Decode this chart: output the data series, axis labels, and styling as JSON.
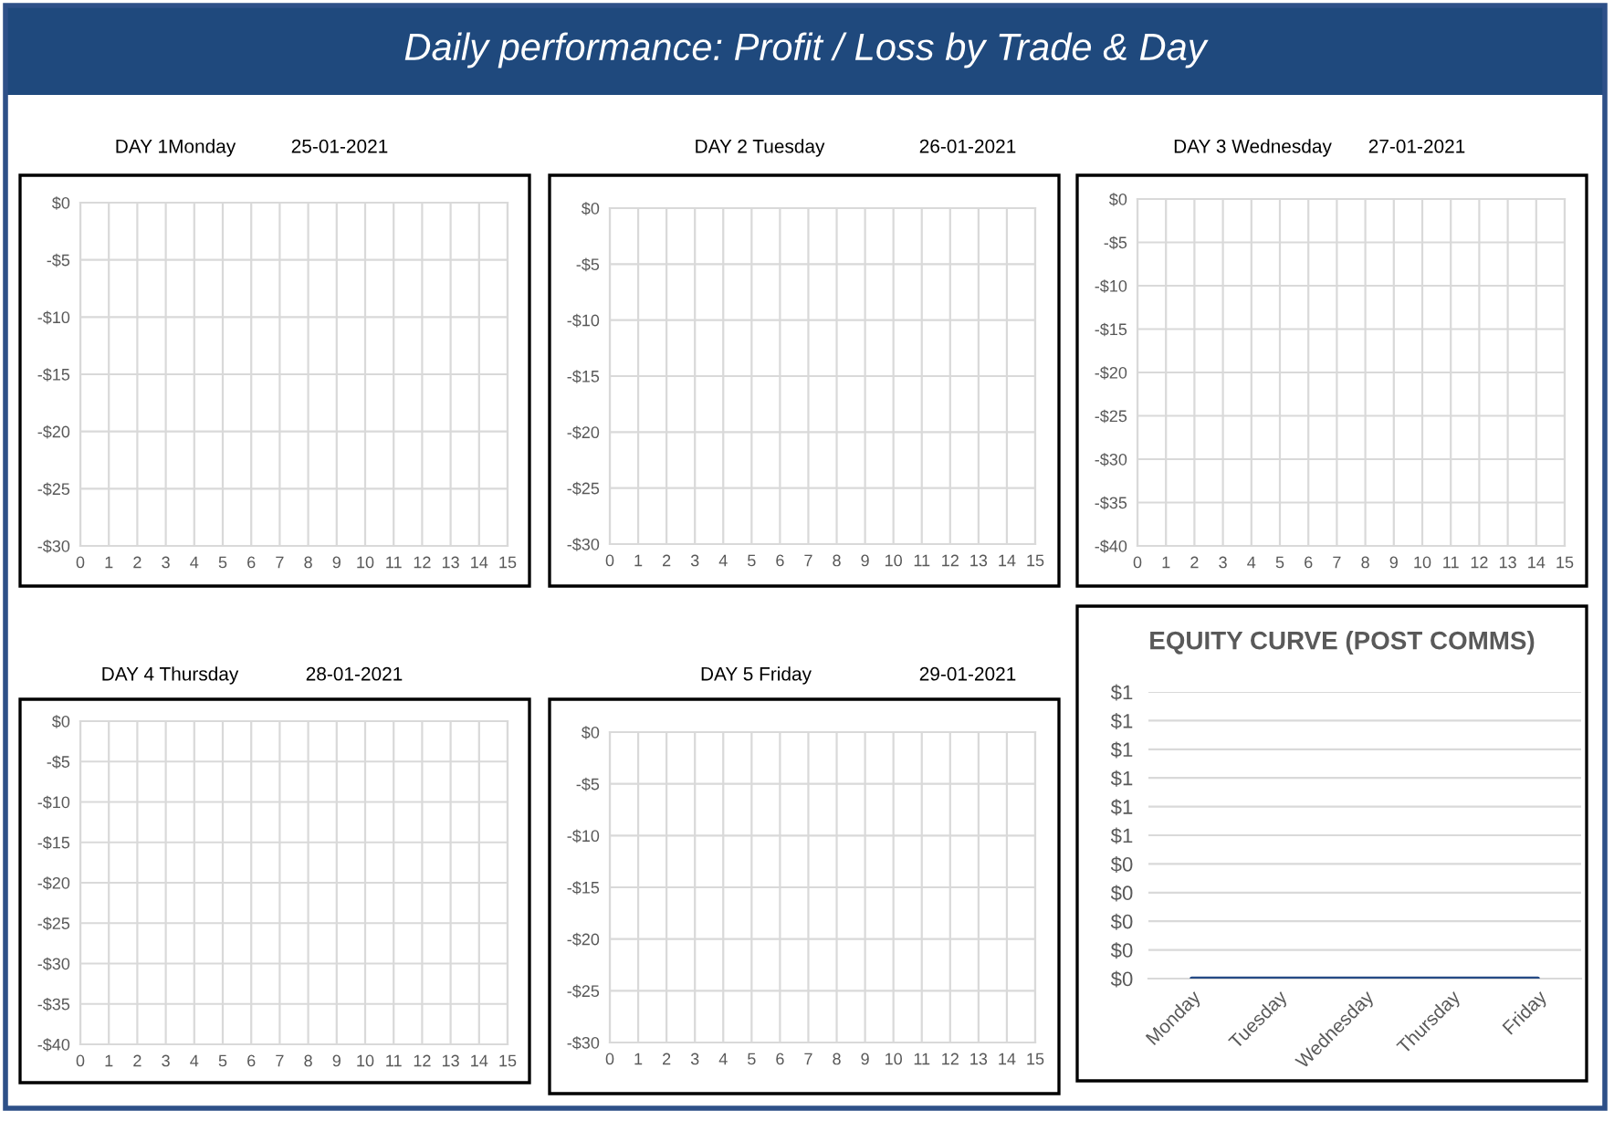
{
  "chart_data": [
    {
      "type": "other",
      "title": "Daily performance: Profit / Loss by Trade & Day"
    },
    {
      "type": "scatter",
      "title": "DAY 1Monday",
      "subtitle": "25-01-2021",
      "xlim": [
        0,
        15
      ],
      "xticks": [
        0,
        1,
        2,
        3,
        4,
        5,
        6,
        7,
        8,
        9,
        10,
        11,
        12,
        13,
        14,
        15
      ],
      "ylim": [
        -30,
        0
      ],
      "yticks": [
        {
          "value": 0,
          "label": "$0"
        },
        {
          "value": -5,
          "label": "-$5"
        },
        {
          "value": -10,
          "label": "-$10"
        },
        {
          "value": -15,
          "label": "-$15"
        },
        {
          "value": -20,
          "label": "-$20"
        },
        {
          "value": -25,
          "label": "-$25"
        },
        {
          "value": -30,
          "label": "-$30"
        }
      ],
      "grid": true
    },
    {
      "type": "scatter",
      "title": "DAY 2 Tuesday",
      "subtitle": "26-01-2021",
      "xlim": [
        0,
        15
      ],
      "xticks": [
        0,
        1,
        2,
        3,
        4,
        5,
        6,
        7,
        8,
        9,
        10,
        11,
        12,
        13,
        14,
        15
      ],
      "ylim": [
        -30,
        0
      ],
      "yticks": [
        {
          "value": 0,
          "label": "$0"
        },
        {
          "value": -5,
          "label": "-$5"
        },
        {
          "value": -10,
          "label": "-$10"
        },
        {
          "value": -15,
          "label": "-$15"
        },
        {
          "value": -20,
          "label": "-$20"
        },
        {
          "value": -25,
          "label": "-$25"
        },
        {
          "value": -30,
          "label": "-$30"
        }
      ],
      "grid": true
    },
    {
      "type": "scatter",
      "title": "DAY 3 Wednesday",
      "subtitle": "27-01-2021",
      "xlim": [
        0,
        15
      ],
      "xticks": [
        0,
        1,
        2,
        3,
        4,
        5,
        6,
        7,
        8,
        9,
        10,
        11,
        12,
        13,
        14,
        15
      ],
      "ylim": [
        -40,
        0
      ],
      "yticks": [
        {
          "value": 0,
          "label": "$0"
        },
        {
          "value": -5,
          "label": "-$5"
        },
        {
          "value": -10,
          "label": "-$10"
        },
        {
          "value": -15,
          "label": "-$15"
        },
        {
          "value": -20,
          "label": "-$20"
        },
        {
          "value": -25,
          "label": "-$25"
        },
        {
          "value": -30,
          "label": "-$30"
        },
        {
          "value": -35,
          "label": "-$35"
        },
        {
          "value": -40,
          "label": "-$40"
        }
      ],
      "grid": true
    },
    {
      "type": "scatter",
      "title": "DAY 4 Thursday",
      "subtitle": "28-01-2021",
      "xlim": [
        0,
        15
      ],
      "xticks": [
        0,
        1,
        2,
        3,
        4,
        5,
        6,
        7,
        8,
        9,
        10,
        11,
        12,
        13,
        14,
        15
      ],
      "ylim": [
        -40,
        0
      ],
      "yticks": [
        {
          "value": 0,
          "label": "$0"
        },
        {
          "value": -5,
          "label": "-$5"
        },
        {
          "value": -10,
          "label": "-$10"
        },
        {
          "value": -15,
          "label": "-$15"
        },
        {
          "value": -20,
          "label": "-$20"
        },
        {
          "value": -25,
          "label": "-$25"
        },
        {
          "value": -30,
          "label": "-$30"
        },
        {
          "value": -35,
          "label": "-$35"
        },
        {
          "value": -40,
          "label": "-$40"
        }
      ],
      "grid": true
    },
    {
      "type": "scatter",
      "title": "DAY 5 Friday",
      "subtitle": "29-01-2021",
      "xlim": [
        0,
        15
      ],
      "xticks": [
        0,
        1,
        2,
        3,
        4,
        5,
        6,
        7,
        8,
        9,
        10,
        11,
        12,
        13,
        14,
        15
      ],
      "ylim": [
        -30,
        0
      ],
      "yticks": [
        {
          "value": 0,
          "label": "$0"
        },
        {
          "value": -5,
          "label": "-$5"
        },
        {
          "value": -10,
          "label": "-$10"
        },
        {
          "value": -15,
          "label": "-$15"
        },
        {
          "value": -20,
          "label": "-$20"
        },
        {
          "value": -25,
          "label": "-$25"
        },
        {
          "value": -30,
          "label": "-$30"
        }
      ],
      "grid": true
    },
    {
      "type": "line",
      "title": "EQUITY CURVE (POST COMMS)",
      "categories": [
        "Monday",
        "Tuesday",
        "Wednesday",
        "Thursday",
        "Friday"
      ],
      "values": [
        0,
        0,
        0,
        0,
        0
      ],
      "color": "#254a85",
      "ylim": [
        0,
        1
      ],
      "yticks": [
        {
          "value": 0,
          "label": "$0"
        },
        {
          "value": 0.1,
          "label": "$0"
        },
        {
          "value": 0.2,
          "label": "$0"
        },
        {
          "value": 0.3,
          "label": "$0"
        },
        {
          "value": 0.4,
          "label": "$0"
        },
        {
          "value": 0.5,
          "label": "$1"
        },
        {
          "value": 0.6,
          "label": "$1"
        },
        {
          "value": 0.7,
          "label": "$1"
        },
        {
          "value": 0.8,
          "label": "$1"
        },
        {
          "value": 0.9,
          "label": "$1"
        },
        {
          "value": 1.0,
          "label": "$1"
        }
      ],
      "grid": "y"
    }
  ]
}
